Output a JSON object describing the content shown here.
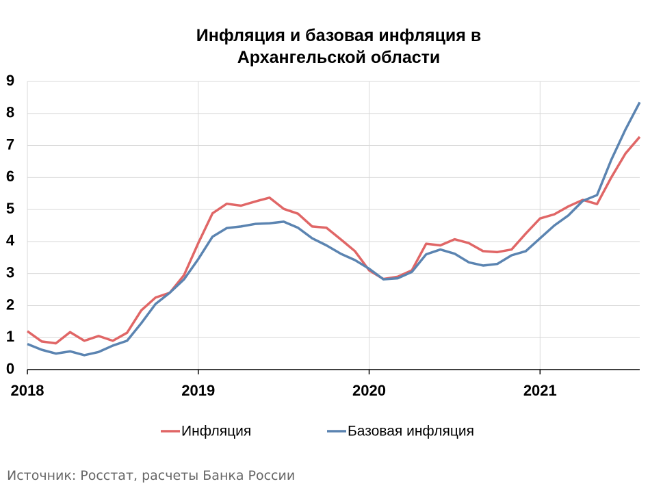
{
  "chart_data": {
    "type": "line",
    "title": "Инфляция и базовая инфляция в Архангельской области",
    "source": "Источник: Росстат, расчеты Банка России",
    "categories": [
      "2018",
      null,
      null,
      null,
      null,
      null,
      null,
      null,
      null,
      null,
      null,
      null,
      "2019",
      null,
      null,
      null,
      null,
      null,
      null,
      null,
      null,
      null,
      null,
      null,
      "2020",
      null,
      null,
      null,
      null,
      null,
      null,
      null,
      null,
      null,
      null,
      null,
      "2021",
      null,
      null,
      null,
      null,
      null,
      null,
      null
    ],
    "series": [
      {
        "name": "Инфляция",
        "color": "#e06666",
        "values": [
          1.2,
          0.88,
          0.82,
          1.17,
          0.9,
          1.05,
          0.9,
          1.15,
          1.85,
          2.25,
          2.4,
          2.95,
          3.95,
          4.88,
          5.18,
          5.12,
          5.25,
          5.37,
          5.02,
          4.87,
          4.47,
          4.43,
          4.07,
          3.7,
          3.1,
          2.83,
          2.9,
          3.1,
          3.93,
          3.88,
          4.07,
          3.95,
          3.7,
          3.67,
          3.75,
          4.25,
          4.72,
          4.85,
          5.1,
          5.3,
          5.17,
          6.0,
          6.75,
          7.27
        ]
      },
      {
        "name": "Базовая инфляция",
        "color": "#5b84b1",
        "values": [
          0.8,
          0.62,
          0.5,
          0.57,
          0.45,
          0.55,
          0.75,
          0.9,
          1.45,
          2.05,
          2.4,
          2.82,
          3.45,
          4.15,
          4.42,
          4.47,
          4.55,
          4.57,
          4.62,
          4.43,
          4.1,
          3.88,
          3.62,
          3.42,
          3.15,
          2.82,
          2.85,
          3.05,
          3.6,
          3.75,
          3.62,
          3.35,
          3.25,
          3.3,
          3.57,
          3.7,
          4.1,
          4.5,
          4.82,
          5.27,
          5.45,
          6.55,
          7.5,
          8.35
        ]
      }
    ],
    "ylim": [
      0,
      9
    ],
    "yticks": [
      0,
      1,
      2,
      3,
      4,
      5,
      6,
      7,
      8,
      9
    ],
    "grid": true
  }
}
